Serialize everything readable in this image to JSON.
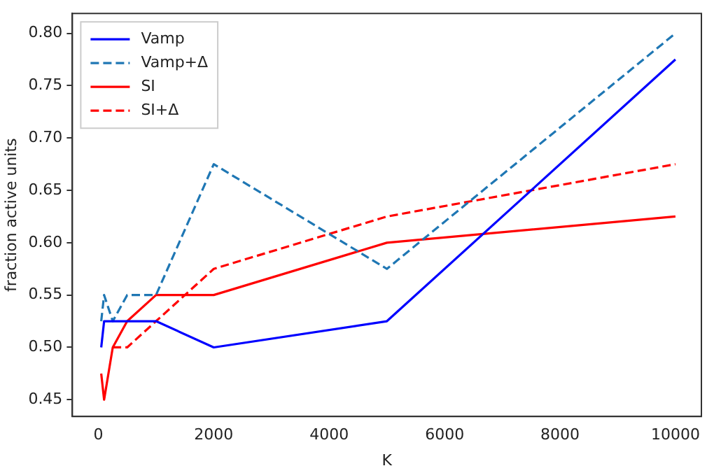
{
  "chart_data": {
    "type": "line",
    "xlabel": "K",
    "ylabel": "fraction active units",
    "x": [
      50,
      100,
      250,
      500,
      1000,
      2000,
      5000,
      10000
    ],
    "series": [
      {
        "name": "Vamp",
        "color": "#0000ff",
        "line_style": "solid",
        "values": [
          0.5,
          0.525,
          0.525,
          0.525,
          0.525,
          0.5,
          0.525,
          0.775
        ]
      },
      {
        "name": "Vamp+Δ",
        "color": "#1f77b4",
        "line_style": "dashed",
        "values": [
          0.525,
          0.55,
          0.525,
          0.55,
          0.55,
          0.675,
          0.575,
          0.8
        ]
      },
      {
        "name": "SI",
        "color": "#ff0000",
        "line_style": "solid",
        "values": [
          0.475,
          0.45,
          0.5,
          0.525,
          0.55,
          0.55,
          0.6,
          0.625
        ]
      },
      {
        "name": "SI+Δ",
        "color": "#ff0000",
        "line_style": "dashed",
        "x": [
          250,
          500,
          1000,
          2000,
          5000,
          10000
        ],
        "values": [
          0.5,
          0.5,
          0.525,
          0.575,
          0.625,
          0.675
        ]
      }
    ],
    "xlim": [
      -450,
      10450
    ],
    "xticks": [
      0,
      2000,
      4000,
      6000,
      8000,
      10000
    ],
    "ylim": [
      0.434,
      0.819
    ],
    "yticks": [
      {
        "value": 0.45,
        "label": "0.45"
      },
      {
        "value": 0.5,
        "label": "0.50"
      },
      {
        "value": 0.55,
        "label": "0.55"
      },
      {
        "value": 0.6,
        "label": "0.60"
      },
      {
        "value": 0.65,
        "label": "0.65"
      },
      {
        "value": 0.7,
        "label": "0.70"
      },
      {
        "value": 0.75,
        "label": "0.75"
      },
      {
        "value": 0.8,
        "label": "0.80"
      }
    ],
    "grid": false,
    "legend": "top left",
    "marker": "none"
  }
}
